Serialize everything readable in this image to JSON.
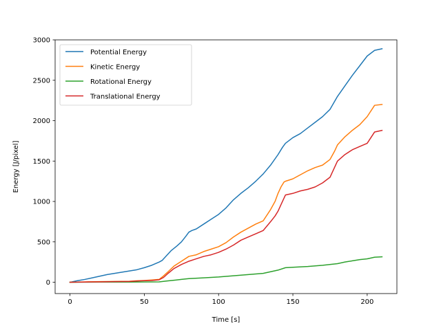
{
  "chart_data": {
    "type": "line",
    "title": "",
    "xlabel": "Time [s]",
    "ylabel": "Energy [J/pixel]",
    "xlim": [
      -10,
      220
    ],
    "ylim": [
      -140,
      3000
    ],
    "xticks": [
      0,
      50,
      100,
      150,
      200
    ],
    "yticks": [
      0,
      500,
      1000,
      1500,
      2000,
      2500,
      3000
    ],
    "xtick_labels": [
      "0",
      "50",
      "100",
      "150",
      "200"
    ],
    "ytick_labels": [
      "0",
      "500",
      "1000",
      "1500",
      "2000",
      "2500",
      "3000"
    ],
    "grid": false,
    "legend_position": "upper-left",
    "series": [
      {
        "name": "Potential Energy",
        "color": "#1f77b4",
        "x": [
          0,
          5,
          10,
          15,
          20,
          25,
          30,
          35,
          40,
          45,
          50,
          55,
          60,
          62,
          65,
          68,
          70,
          72,
          75,
          78,
          80,
          82,
          85,
          90,
          95,
          100,
          105,
          110,
          115,
          120,
          125,
          130,
          135,
          140,
          143,
          145,
          150,
          155,
          160,
          165,
          170,
          175,
          180,
          185,
          190,
          195,
          200,
          205,
          210
        ],
        "y": [
          0,
          20,
          35,
          55,
          75,
          95,
          110,
          125,
          140,
          155,
          180,
          210,
          250,
          270,
          330,
          390,
          420,
          450,
          500,
          570,
          620,
          640,
          660,
          720,
          780,
          840,
          920,
          1020,
          1100,
          1170,
          1250,
          1340,
          1450,
          1580,
          1670,
          1720,
          1790,
          1840,
          1910,
          1980,
          2050,
          2140,
          2300,
          2430,
          2560,
          2680,
          2800,
          2870,
          2890
        ]
      },
      {
        "name": "Kinetic Energy",
        "color": "#ff7f0e",
        "x": [
          0,
          10,
          20,
          30,
          40,
          45,
          50,
          55,
          60,
          63,
          66,
          70,
          75,
          80,
          85,
          90,
          95,
          100,
          105,
          110,
          115,
          120,
          125,
          130,
          135,
          138,
          140,
          142,
          144,
          145,
          150,
          155,
          160,
          165,
          170,
          175,
          178,
          180,
          185,
          190,
          195,
          200,
          205,
          210
        ],
        "y": [
          0,
          5,
          8,
          10,
          12,
          18,
          22,
          28,
          35,
          80,
          130,
          200,
          260,
          320,
          340,
          380,
          410,
          440,
          490,
          560,
          620,
          670,
          720,
          760,
          900,
          1000,
          1100,
          1180,
          1240,
          1250,
          1280,
          1330,
          1380,
          1420,
          1450,
          1520,
          1620,
          1700,
          1800,
          1880,
          1950,
          2050,
          2190,
          2200
        ]
      },
      {
        "name": "Rotational Energy",
        "color": "#2ca02c",
        "x": [
          0,
          20,
          40,
          60,
          65,
          70,
          75,
          80,
          90,
          100,
          110,
          120,
          130,
          135,
          140,
          145,
          150,
          160,
          170,
          180,
          185,
          190,
          195,
          200,
          205,
          210
        ],
        "y": [
          0,
          2,
          3,
          5,
          15,
          25,
          35,
          45,
          55,
          65,
          80,
          95,
          110,
          130,
          150,
          180,
          185,
          195,
          210,
          230,
          250,
          265,
          280,
          290,
          310,
          315
        ]
      },
      {
        "name": "Translational Energy",
        "color": "#d62728",
        "x": [
          0,
          10,
          20,
          30,
          40,
          45,
          50,
          55,
          60,
          63,
          66,
          70,
          75,
          80,
          85,
          90,
          95,
          100,
          105,
          110,
          115,
          120,
          125,
          130,
          135,
          138,
          140,
          142,
          144,
          145,
          150,
          155,
          160,
          165,
          170,
          175,
          178,
          180,
          185,
          190,
          195,
          200,
          205,
          210
        ],
        "y": [
          0,
          3,
          5,
          8,
          10,
          15,
          20,
          22,
          30,
          60,
          110,
          170,
          220,
          260,
          290,
          320,
          340,
          370,
          410,
          460,
          520,
          560,
          600,
          640,
          750,
          820,
          880,
          960,
          1040,
          1080,
          1100,
          1130,
          1150,
          1180,
          1230,
          1300,
          1420,
          1500,
          1580,
          1640,
          1680,
          1720,
          1860,
          1880
        ]
      }
    ]
  }
}
